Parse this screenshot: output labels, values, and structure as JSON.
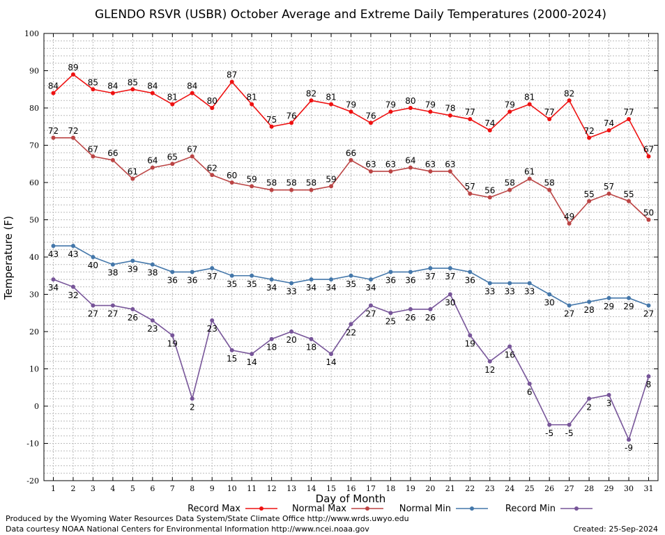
{
  "chart_data": {
    "type": "line",
    "title": "GLENDO RSVR (USBR) October Average and Extreme Daily Temperatures (2000-2024)",
    "xlabel": "Day of Month",
    "ylabel": "Temperature (F)",
    "x": [
      1,
      2,
      3,
      4,
      5,
      6,
      7,
      8,
      9,
      10,
      11,
      12,
      13,
      14,
      15,
      16,
      17,
      18,
      19,
      20,
      21,
      22,
      23,
      24,
      25,
      26,
      27,
      28,
      29,
      30,
      31
    ],
    "ylim": [
      -20,
      100
    ],
    "yticks": [
      -20,
      -10,
      0,
      10,
      20,
      30,
      40,
      50,
      60,
      70,
      80,
      90,
      100
    ],
    "grid": true,
    "legend_position": "bottom",
    "series": [
      {
        "name": "Record Max",
        "color": "#ee1111",
        "values": [
          84,
          89,
          85,
          84,
          85,
          84,
          81,
          84,
          80,
          87,
          81,
          75,
          76,
          82,
          81,
          79,
          76,
          79,
          80,
          79,
          78,
          77,
          74,
          79,
          81,
          77,
          82,
          72,
          74,
          77,
          67
        ]
      },
      {
        "name": "Normal Max",
        "color": "#bb4444",
        "values": [
          72,
          72,
          67,
          66,
          61,
          64,
          65,
          67,
          62,
          60,
          59,
          58,
          58,
          58,
          59,
          66,
          63,
          63,
          64,
          63,
          63,
          57,
          56,
          58,
          61,
          58,
          49,
          55,
          57,
          55,
          50
        ]
      },
      {
        "name": "Normal Min",
        "color": "#4477aa",
        "values": [
          43,
          43,
          40,
          38,
          39,
          38,
          36,
          36,
          37,
          35,
          35,
          34,
          33,
          34,
          34,
          35,
          34,
          36,
          36,
          37,
          37,
          36,
          33,
          33,
          33,
          30,
          27,
          28,
          29,
          29,
          27
        ]
      },
      {
        "name": "Record Min",
        "color": "#775599",
        "values": [
          34,
          32,
          27,
          27,
          26,
          23,
          19,
          2,
          23,
          15,
          14,
          18,
          20,
          18,
          14,
          22,
          27,
          25,
          26,
          26,
          30,
          19,
          12,
          16,
          6,
          -5,
          -5,
          2,
          3,
          -9,
          8
        ]
      }
    ]
  },
  "footer": {
    "line1": "Produced by the Wyoming Water Resources Data System/State Climate Office http://www.wrds.uwyo.edu",
    "line2": "Data courtesy NOAA National Centers for Environmental Information http://www.ncei.noaa.gov",
    "created": "Created:  25-Sep-2024"
  }
}
